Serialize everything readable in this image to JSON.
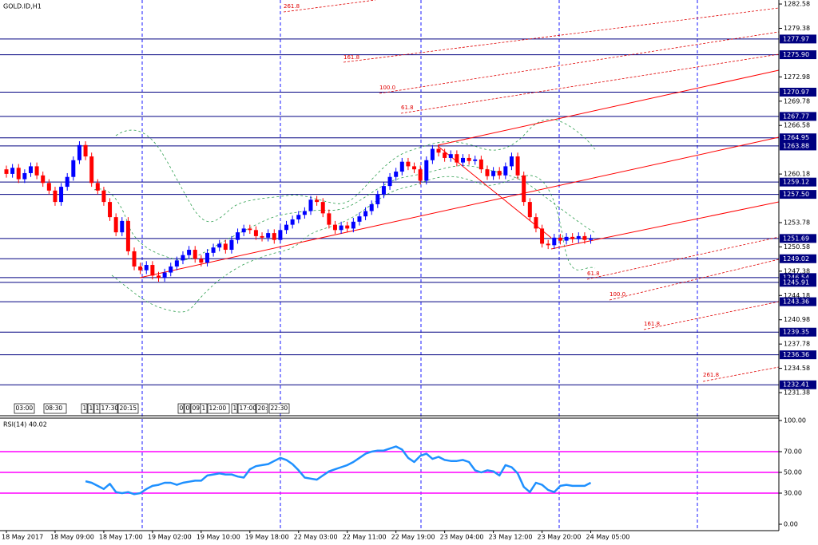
{
  "chart_data": [
    {
      "type": "candlestick",
      "title": "GOLD.ID,H1",
      "categories": [
        "18 May 2017",
        null,
        null,
        null,
        null,
        null,
        null,
        null,
        "18 May 09:00",
        null,
        null,
        null,
        null,
        null,
        null,
        null,
        "18 May 17:00",
        null,
        null,
        null,
        null,
        null,
        null,
        null,
        "19 May 02:00",
        null,
        null,
        null,
        null,
        null,
        null,
        null,
        "19 May 10:00",
        null,
        null,
        null,
        null,
        null,
        null,
        null,
        "19 May 18:00",
        null,
        null,
        null,
        null,
        null,
        null,
        null,
        "22 May 03:00",
        null,
        null,
        null,
        null,
        null,
        null,
        null,
        "22 May 11:00",
        null,
        null,
        null,
        null,
        null,
        null,
        null,
        "22 May 19:00",
        null,
        null,
        null,
        null,
        null,
        null,
        null,
        "23 May 04:00",
        null,
        null,
        null,
        null,
        null,
        null,
        null,
        "23 May 12:00",
        null,
        null,
        null,
        null,
        null,
        null,
        null,
        "23 May 20:00",
        null,
        null,
        null,
        null,
        null,
        null,
        null,
        "24 May 05:00"
      ],
      "open": [
        1260.8,
        1260.2,
        1261.0,
        1259.5,
        1260.3,
        1261.2,
        1260.0,
        1259.0,
        1258.0,
        1256.5,
        1258.5,
        1259.8,
        1262.0,
        1264.0,
        1262.5,
        1259.0,
        1258.0,
        1256.5,
        1254.5,
        1252.5,
        1254.0,
        1250.0,
        1248.0,
        1247.5,
        1248.2,
        1246.8,
        1246.5,
        1247.2,
        1248.0,
        1248.8,
        1249.5,
        1250.2,
        1249.0,
        1248.5,
        1249.8,
        1250.5,
        1251.0,
        1250.2,
        1251.5,
        1252.5,
        1253.0,
        1252.8,
        1252.0,
        1251.8,
        1252.4,
        1251.5,
        1252.8,
        1253.5,
        1254.2,
        1254.8,
        1255.3,
        1256.8,
        1256.5,
        1255.0,
        1253.5,
        1252.8,
        1253.4,
        1253.0,
        1253.9,
        1254.6,
        1255.3,
        1256.2,
        1257.5,
        1258.6,
        1259.8,
        1260.5,
        1261.8,
        1261.2,
        1260.8,
        1259.3,
        1262.0,
        1263.5,
        1263.0,
        1262.3,
        1262.8,
        1261.7,
        1262.3,
        1261.9,
        1262.1,
        1260.8,
        1259.9,
        1260.6,
        1260.0,
        1261.2,
        1262.5,
        1260.0,
        1256.5,
        1254.5,
        1253.0,
        1251.0,
        1250.8,
        1251.8,
        1251.4,
        1251.9,
        1251.6,
        1252.0,
        1251.5
      ],
      "high": [
        1261.3,
        1261.5,
        1261.5,
        1260.8,
        1261.7,
        1261.7,
        1260.5,
        1259.5,
        1258.5,
        1259.0,
        1260.3,
        1262.5,
        1264.5,
        1264.5,
        1263.0,
        1259.5,
        1258.5,
        1257.0,
        1255.0,
        1254.5,
        1254.5,
        1250.5,
        1248.5,
        1248.7,
        1248.7,
        1247.3,
        1247.7,
        1248.5,
        1249.3,
        1250.0,
        1250.7,
        1250.7,
        1249.5,
        1250.3,
        1251.0,
        1251.5,
        1251.5,
        1252.0,
        1253.0,
        1253.5,
        1253.5,
        1253.3,
        1252.5,
        1252.9,
        1252.9,
        1253.3,
        1254.0,
        1254.7,
        1255.3,
        1255.8,
        1257.3,
        1257.3,
        1257.0,
        1255.5,
        1254.0,
        1253.9,
        1253.9,
        1254.4,
        1255.1,
        1255.8,
        1256.7,
        1258.0,
        1259.1,
        1260.3,
        1261.0,
        1262.3,
        1262.3,
        1261.7,
        1261.3,
        1262.5,
        1264.0,
        1264.0,
        1263.5,
        1263.3,
        1263.3,
        1262.8,
        1262.8,
        1262.6,
        1262.6,
        1261.3,
        1261.1,
        1261.1,
        1261.7,
        1263.0,
        1263.0,
        1260.5,
        1257.0,
        1255.0,
        1253.5,
        1251.5,
        1252.3,
        1252.3,
        1252.4,
        1252.4,
        1252.5,
        1252.5,
        1252.2
      ],
      "low": [
        1259.7,
        1259.7,
        1259.0,
        1259.0,
        1259.8,
        1259.5,
        1258.5,
        1257.5,
        1256.0,
        1256.0,
        1258.0,
        1259.3,
        1261.5,
        1262.0,
        1258.5,
        1257.5,
        1256.0,
        1254.0,
        1252.0,
        1252.0,
        1249.5,
        1247.5,
        1247.0,
        1247.0,
        1246.3,
        1246.0,
        1246.0,
        1246.7,
        1247.5,
        1248.3,
        1249.0,
        1248.5,
        1248.0,
        1248.0,
        1249.3,
        1250.0,
        1249.7,
        1249.7,
        1251.0,
        1252.0,
        1252.3,
        1251.5,
        1251.3,
        1251.3,
        1251.0,
        1251.0,
        1252.3,
        1253.0,
        1253.7,
        1254.3,
        1254.8,
        1256.0,
        1254.5,
        1253.0,
        1252.3,
        1252.3,
        1252.5,
        1252.5,
        1253.4,
        1254.1,
        1254.8,
        1255.7,
        1257.0,
        1258.1,
        1259.3,
        1260.0,
        1260.7,
        1260.3,
        1258.8,
        1258.8,
        1261.5,
        1262.5,
        1261.8,
        1261.8,
        1261.2,
        1261.2,
        1261.4,
        1261.4,
        1260.3,
        1259.4,
        1259.4,
        1259.5,
        1259.5,
        1260.7,
        1259.5,
        1256.0,
        1254.0,
        1252.5,
        1250.5,
        1250.3,
        1250.3,
        1250.9,
        1250.9,
        1251.1,
        1251.1,
        1251.0,
        1251.0
      ],
      "close": [
        1260.2,
        1261.0,
        1259.5,
        1260.3,
        1261.2,
        1260.0,
        1259.0,
        1258.0,
        1256.5,
        1258.5,
        1259.8,
        1262.0,
        1264.0,
        1262.5,
        1259.0,
        1258.0,
        1256.5,
        1254.5,
        1252.5,
        1254.0,
        1250.0,
        1248.0,
        1247.5,
        1248.2,
        1246.8,
        1246.5,
        1247.2,
        1248.0,
        1248.8,
        1249.5,
        1250.2,
        1249.0,
        1248.5,
        1249.8,
        1250.5,
        1251.0,
        1250.2,
        1251.5,
        1252.5,
        1253.0,
        1252.8,
        1252.0,
        1251.8,
        1252.4,
        1251.5,
        1252.8,
        1253.5,
        1254.2,
        1254.8,
        1255.3,
        1256.8,
        1256.5,
        1255.0,
        1253.5,
        1252.8,
        1253.4,
        1253.0,
        1253.9,
        1254.6,
        1255.3,
        1256.2,
        1257.5,
        1258.6,
        1259.8,
        1260.5,
        1261.8,
        1261.2,
        1260.8,
        1259.3,
        1262.0,
        1263.5,
        1263.0,
        1262.3,
        1262.8,
        1261.7,
        1262.3,
        1261.9,
        1262.1,
        1260.8,
        1259.9,
        1260.6,
        1260.0,
        1261.2,
        1262.5,
        1260.0,
        1256.5,
        1254.5,
        1253.0,
        1251.0,
        1250.8,
        1251.8,
        1251.4,
        1251.9,
        1251.6,
        1252.0,
        1251.5,
        1251.7
      ],
      "up_color": "#0000ff",
      "down_color": "#ff0000",
      "ylim": [
        1228.44,
        1283.11
      ],
      "yticks": [
        1282.58,
        1279.38,
        1272.98,
        1269.78,
        1266.58,
        1260.18,
        1253.78,
        1250.58,
        1247.38,
        1244.18,
        1240.98,
        1237.78,
        1234.58,
        1231.38
      ],
      "price_levels": [
        1277.97,
        {
          "value": 1275.9,
          "label": "1275.90"
        },
        1270.97,
        1267.77,
        1264.95,
        1263.88,
        1259.12,
        {
          "value": 1257.5,
          "label": "1257.50"
        },
        1251.69,
        1249.02,
        1246.54,
        1245.91,
        1243.36,
        1239.35,
        1236.36,
        1232.41
      ],
      "level_color": "#000080",
      "annotations": [
        "261.8",
        "161.8",
        "100.0",
        "61.8",
        "61.8",
        "100.0",
        "161.8",
        "261.8"
      ],
      "time_markers": [
        "03:00",
        "08:30",
        "1",
        "1",
        "1",
        "17:30",
        "20:15",
        "0",
        "0",
        "09:",
        "1",
        "12:00",
        "1",
        "17:00",
        "20:",
        "22:30"
      ]
    },
    {
      "type": "line",
      "title": "RSI(14) 40.02",
      "series": [
        {
          "color": "#1e90ff",
          "values": [
            null,
            null,
            null,
            null,
            null,
            null,
            null,
            null,
            null,
            null,
            null,
            null,
            null,
            41.5,
            40,
            37,
            34,
            39,
            31,
            30,
            31,
            29,
            30,
            34,
            37,
            38,
            40,
            40,
            38,
            40,
            41,
            42,
            42,
            47,
            48,
            49,
            48,
            48,
            46,
            45,
            53,
            56,
            57,
            58,
            61,
            64,
            62,
            58,
            52,
            45,
            44,
            43,
            47,
            51,
            53,
            55,
            57,
            60,
            64,
            68,
            70,
            71,
            71,
            73,
            75,
            72,
            64,
            60,
            66,
            68,
            63,
            65,
            62,
            61,
            61,
            62,
            60,
            52,
            50,
            52,
            51,
            47,
            57,
            55,
            49,
            36,
            31,
            40,
            38,
            33,
            31,
            37,
            38,
            37,
            37,
            37,
            40.02
          ]
        }
      ],
      "ylim": [
        -6.15,
        103.08
      ],
      "yticks": [
        {
          "value": 100,
          "label": "100.00"
        },
        {
          "value": 70,
          "label": "70.00"
        },
        {
          "value": 50,
          "label": "50.00"
        },
        {
          "value": 30,
          "label": "30.00"
        },
        {
          "value": 0,
          "label": "0.00"
        }
      ],
      "levels": [
        70,
        50,
        30
      ],
      "level_color": "#ff00ff"
    }
  ]
}
